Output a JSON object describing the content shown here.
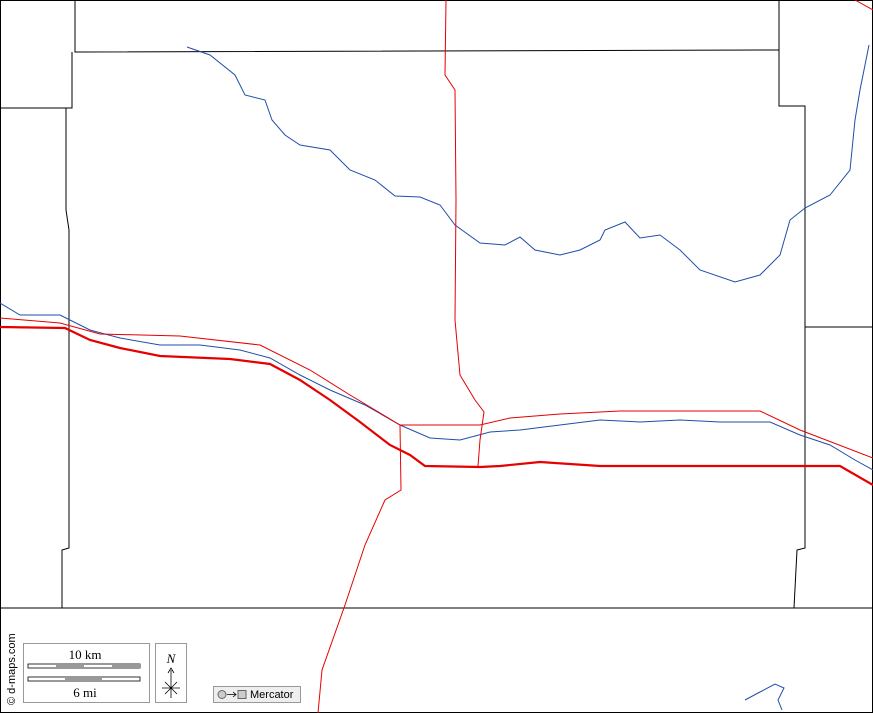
{
  "scale": {
    "km_label": "10 km",
    "mi_label": "6 mi"
  },
  "north_label": "N",
  "projection_label": "Mercator",
  "credit": "© d-maps.com"
}
